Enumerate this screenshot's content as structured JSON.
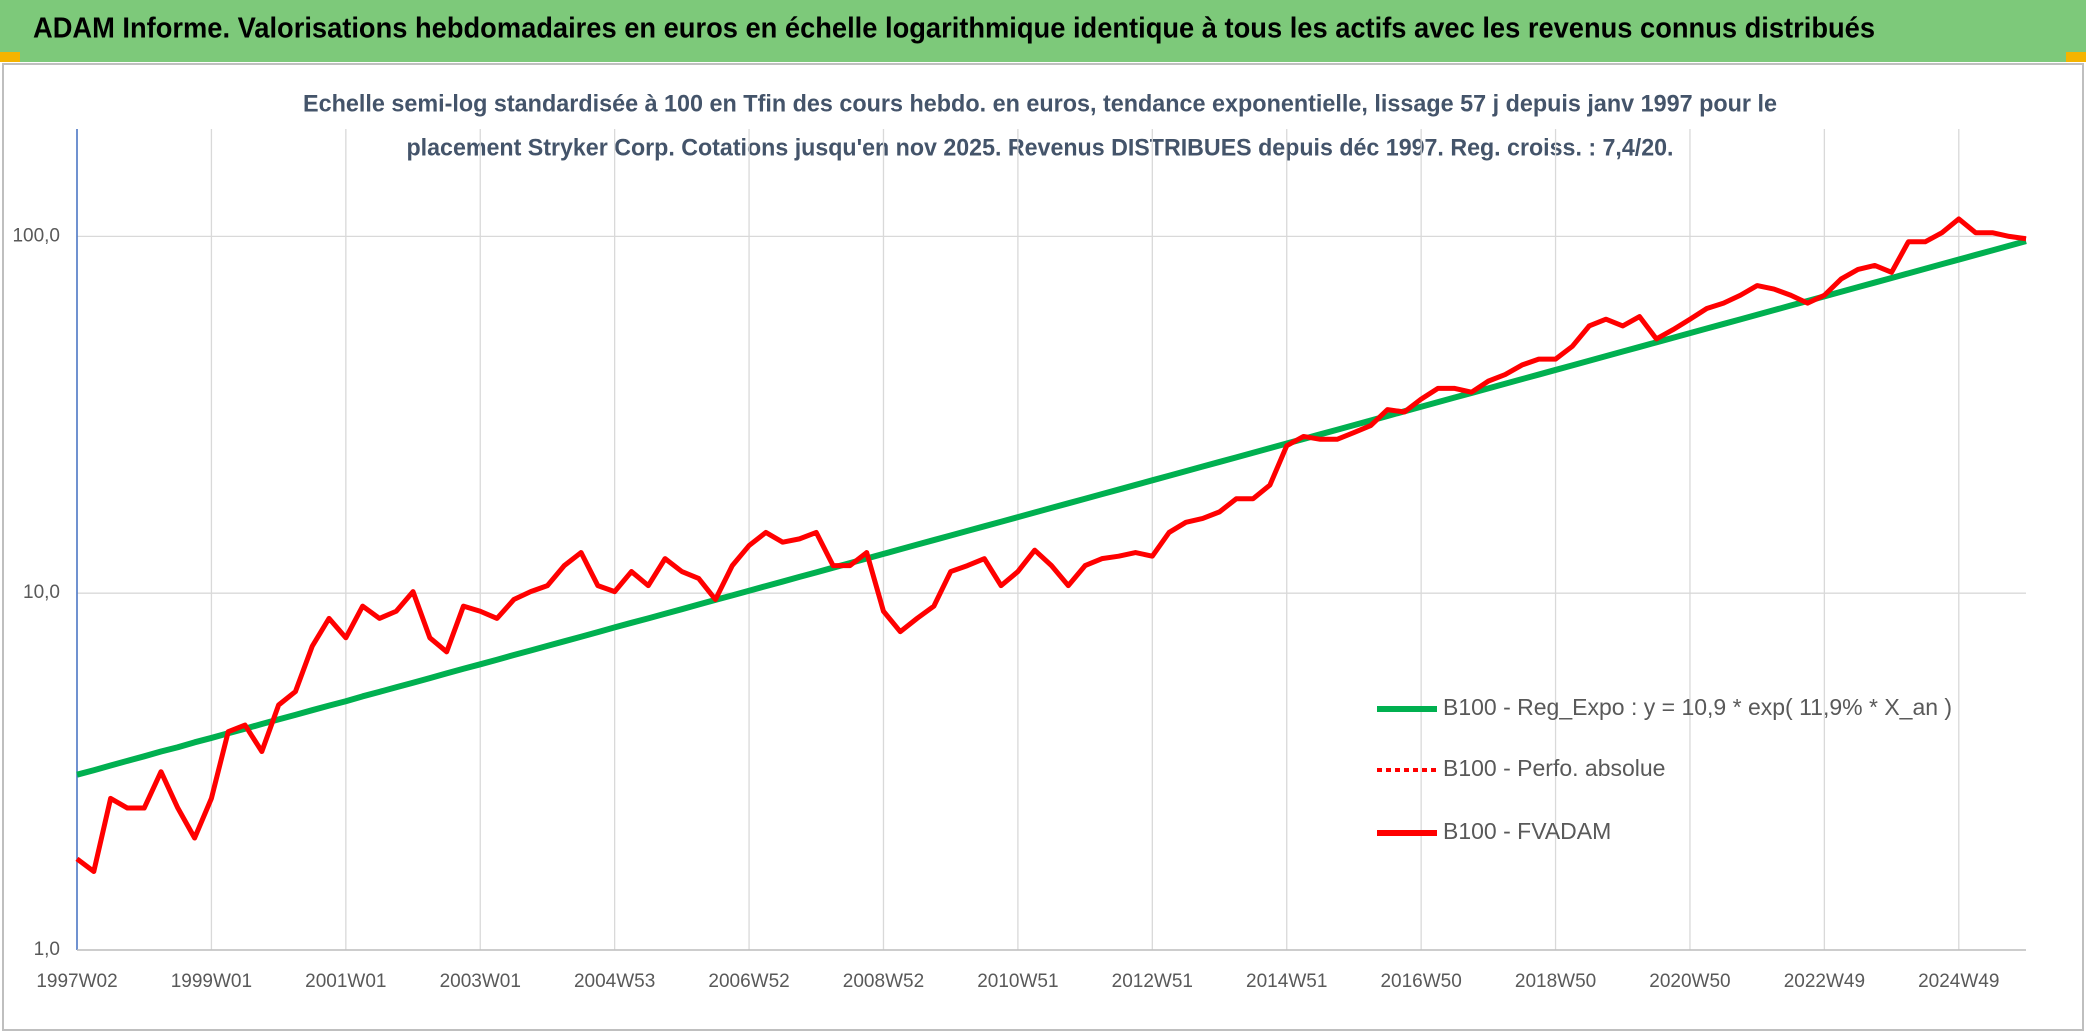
{
  "chart_data": {
    "type": "line",
    "title": "ADAM Informe. Valorisations hebdomadaires en euros en échelle logarithmique identique à tous les actifs avec les revenus connus distribués",
    "subtitle": [
      "Echelle semi-log standardisée à 100 en Tfin des cours hebdo. en euros, tendance exponentielle, lissage 57 j depuis janv 1997 pour le",
      "placement Stryker Corp. Cotations jusqu'en nov 2025. Revenus DISTRIBUES depuis déc 1997. Reg. croiss. : 7,4/20."
    ],
    "log_y": true,
    "grid": true,
    "ylim": [
      1,
      200
    ],
    "yticks": [
      {
        "value": 1,
        "label": "1,0"
      },
      {
        "value": 10,
        "label": "10,0"
      },
      {
        "value": 100,
        "label": "100,0"
      }
    ],
    "categories": [
      "1997W02",
      null,
      null,
      null,
      null,
      null,
      null,
      null,
      "1999W01",
      null,
      null,
      null,
      null,
      null,
      null,
      null,
      "2001W01",
      null,
      null,
      null,
      null,
      null,
      null,
      null,
      "2003W01",
      null,
      null,
      null,
      null,
      null,
      null,
      null,
      "2004W53",
      null,
      null,
      null,
      null,
      null,
      null,
      null,
      "2006W52",
      null,
      null,
      null,
      null,
      null,
      null,
      null,
      "2008W52",
      null,
      null,
      null,
      null,
      null,
      null,
      null,
      "2010W51",
      null,
      null,
      null,
      null,
      null,
      null,
      null,
      "2012W51",
      null,
      null,
      null,
      null,
      null,
      null,
      null,
      "2014W51",
      null,
      null,
      null,
      null,
      null,
      null,
      null,
      "2016W50",
      null,
      null,
      null,
      null,
      null,
      null,
      null,
      "2018W50",
      null,
      null,
      null,
      null,
      null,
      null,
      null,
      "2020W50",
      null,
      null,
      null,
      null,
      null,
      null,
      null,
      "2022W49",
      null,
      null,
      null,
      null,
      null,
      null,
      null,
      "2024W49",
      null,
      null,
      null,
      null
    ],
    "series": [
      {
        "name": "B100 - Reg_Expo : y = 10,9 * exp( 11,9% *  X_an )",
        "color": "#00b050",
        "style": "solid",
        "values": [
          3.1,
          3.19,
          3.29,
          3.39,
          3.49,
          3.6,
          3.7,
          3.82,
          3.93,
          4.05,
          4.17,
          4.3,
          4.43,
          4.56,
          4.7,
          4.84,
          4.98,
          5.14,
          5.29,
          5.45,
          5.61,
          5.78,
          5.96,
          6.14,
          6.32,
          6.51,
          6.71,
          6.91,
          7.12,
          7.33,
          7.55,
          7.78,
          8.02,
          8.26,
          8.5,
          8.76,
          9.02,
          9.3,
          9.58,
          9.86,
          10.16,
          10.47,
          10.78,
          11.11,
          11.44,
          11.79,
          12.14,
          12.51,
          12.89,
          13.28,
          13.68,
          14.09,
          14.51,
          14.95,
          15.4,
          15.86,
          16.34,
          16.83,
          17.34,
          17.86,
          18.4,
          18.95,
          19.52,
          20.11,
          20.72,
          21.34,
          21.99,
          22.65,
          23.33,
          24.03,
          24.76,
          25.5,
          26.27,
          27.06,
          27.88,
          28.72,
          29.58,
          30.47,
          31.39,
          32.34,
          33.31,
          34.32,
          35.35,
          36.41,
          37.51,
          38.64,
          39.81,
          41.0,
          42.24,
          43.51,
          44.82,
          46.18,
          47.57,
          49.0,
          50.48,
          52.0,
          53.56,
          55.18,
          56.84,
          58.55,
          60.32,
          62.13,
          64.01,
          65.93,
          67.92,
          69.96,
          72.07,
          74.24,
          76.48,
          78.78,
          81.16,
          83.6,
          86.12,
          88.72,
          91.39,
          94.14,
          96.98
        ]
      },
      {
        "name": "B100 - Perfo. absolue",
        "color": "#ff0000",
        "style": "dotted",
        "values": [
          1.8,
          1.66,
          2.66,
          2.5,
          2.5,
          3.16,
          2.5,
          2.06,
          2.66,
          4.09,
          4.27,
          3.6,
          4.86,
          5.3,
          7.1,
          8.5,
          7.5,
          9.2,
          8.5,
          8.9,
          10.1,
          7.5,
          6.85,
          9.2,
          8.9,
          8.5,
          9.6,
          10.1,
          10.5,
          11.95,
          13.0,
          10.5,
          10.1,
          11.5,
          10.5,
          12.5,
          11.5,
          11.0,
          9.6,
          11.95,
          13.6,
          14.8,
          13.9,
          14.2,
          14.8,
          11.95,
          11.95,
          13.0,
          8.9,
          7.8,
          8.5,
          9.2,
          11.5,
          11.95,
          12.5,
          10.5,
          11.5,
          13.2,
          11.95,
          10.5,
          11.95,
          12.5,
          12.7,
          13.0,
          12.7,
          14.8,
          15.8,
          16.2,
          16.9,
          18.4,
          18.4,
          20.1,
          25.9,
          27.5,
          27.0,
          27.0,
          28.2,
          29.5,
          32.7,
          32.2,
          35.0,
          37.5,
          37.5,
          36.6,
          39.3,
          41.0,
          43.6,
          45.3,
          45.3,
          49.2,
          56.1,
          58.6,
          56.1,
          59.6,
          51.6,
          54.8,
          58.6,
          62.8,
          65.0,
          68.4,
          72.8,
          71.2,
          68.4,
          65.0,
          68.4,
          76.0,
          80.8,
          82.9,
          79.3,
          96.6,
          96.6,
          102.4,
          111.9,
          102.4,
          102.4,
          100,
          98.5
        ]
      },
      {
        "name": "B100 - FVADAM",
        "color": "#ff0000",
        "style": "solid",
        "values": [
          1.8,
          1.66,
          2.66,
          2.5,
          2.5,
          3.16,
          2.5,
          2.06,
          2.66,
          4.09,
          4.27,
          3.6,
          4.86,
          5.3,
          7.1,
          8.5,
          7.5,
          9.2,
          8.5,
          8.9,
          10.1,
          7.5,
          6.85,
          9.2,
          8.9,
          8.5,
          9.6,
          10.1,
          10.5,
          11.95,
          13.0,
          10.5,
          10.1,
          11.5,
          10.5,
          12.5,
          11.5,
          11.0,
          9.6,
          11.95,
          13.6,
          14.8,
          13.9,
          14.2,
          14.8,
          11.95,
          11.95,
          13.0,
          8.9,
          7.8,
          8.5,
          9.2,
          11.5,
          11.95,
          12.5,
          10.5,
          11.5,
          13.2,
          11.95,
          10.5,
          11.95,
          12.5,
          12.7,
          13.0,
          12.7,
          14.8,
          15.8,
          16.2,
          16.9,
          18.4,
          18.4,
          20.1,
          25.9,
          27.5,
          27.0,
          27.0,
          28.2,
          29.5,
          32.7,
          32.2,
          35.0,
          37.5,
          37.5,
          36.6,
          39.3,
          41.0,
          43.6,
          45.3,
          45.3,
          49.2,
          56.1,
          58.6,
          56.1,
          59.6,
          51.6,
          54.8,
          58.6,
          62.8,
          65.0,
          68.4,
          72.8,
          71.2,
          68.4,
          65.0,
          68.4,
          76.0,
          80.8,
          82.9,
          79.3,
          96.6,
          96.6,
          102.4,
          111.9,
          102.4,
          102.4,
          100,
          98.5
        ]
      }
    ]
  }
}
